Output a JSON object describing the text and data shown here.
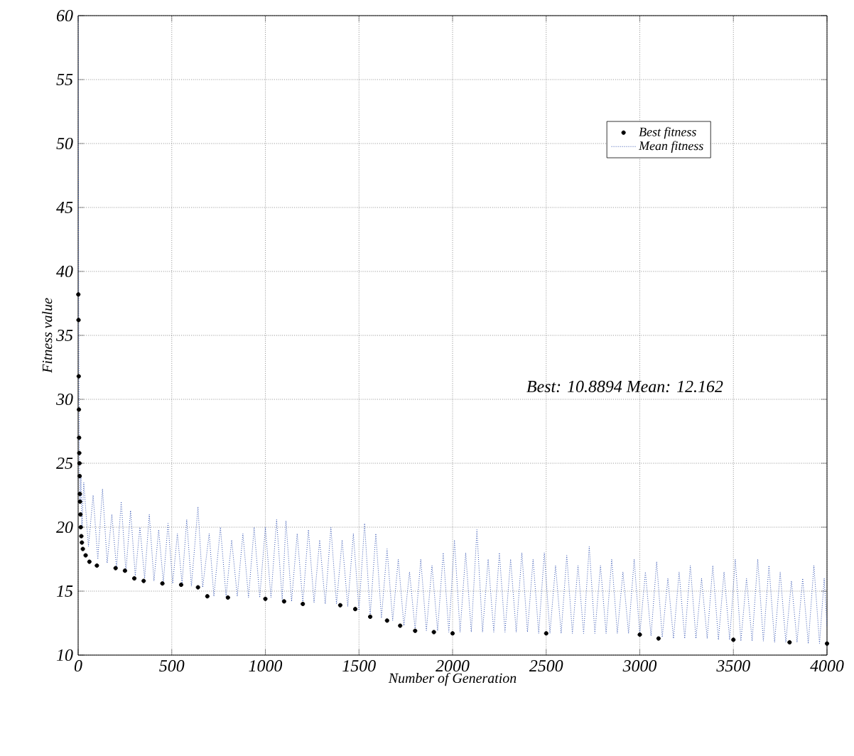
{
  "chart_data": {
    "type": "line",
    "xlabel": "Number of Generation",
    "ylabel": "Fitness value",
    "xlim": [
      0,
      4000
    ],
    "ylim": [
      10,
      60
    ],
    "xticks": [
      0,
      500,
      1000,
      1500,
      2000,
      2500,
      3000,
      3500,
      4000
    ],
    "yticks": [
      10,
      15,
      20,
      25,
      30,
      35,
      40,
      45,
      50,
      55,
      60
    ],
    "grid": true,
    "legend": "top right",
    "annotations": [
      "Best: 10.8894 Mean: 12.162"
    ],
    "series": [
      {
        "name": "Best fitness",
        "type": "scatter",
        "marker": "circle",
        "color": "#000000",
        "x": [
          1,
          2,
          3,
          4,
          5,
          6,
          7,
          8,
          9,
          10,
          12,
          14,
          17,
          20,
          25,
          40,
          60,
          100,
          200,
          250,
          300,
          350,
          450,
          550,
          640,
          690,
          800,
          1000,
          1100,
          1200,
          1400,
          1480,
          1560,
          1650,
          1720,
          1800,
          1900,
          2000,
          2500,
          3000,
          3100,
          3500,
          3800,
          4000
        ],
        "values": [
          38.2,
          36.2,
          31.8,
          29.2,
          27.0,
          25.8,
          25.0,
          24.0,
          22.6,
          22.0,
          21.0,
          20.0,
          19.3,
          18.8,
          18.3,
          17.8,
          17.3,
          17.0,
          16.8,
          16.6,
          16.0,
          15.8,
          15.6,
          15.5,
          15.3,
          14.6,
          14.5,
          14.4,
          14.2,
          14.0,
          13.9,
          13.6,
          13.0,
          12.7,
          12.3,
          11.9,
          11.8,
          11.7,
          11.7,
          11.6,
          11.3,
          11.2,
          11.0,
          10.9
        ]
      },
      {
        "name": "Mean fitness",
        "marker": "none",
        "line_style": "dotted",
        "color": "#3050b0",
        "x": [
          0,
          2,
          4,
          6,
          8,
          10,
          15,
          20,
          30,
          55,
          80,
          105,
          130,
          155,
          180,
          205,
          230,
          255,
          280,
          305,
          330,
          355,
          380,
          405,
          430,
          455,
          480,
          505,
          530,
          555,
          580,
          605,
          640,
          665,
          700,
          725,
          760,
          790,
          820,
          850,
          880,
          910,
          940,
          970,
          1000,
          1030,
          1060,
          1090,
          1110,
          1140,
          1170,
          1200,
          1230,
          1260,
          1290,
          1320,
          1350,
          1380,
          1410,
          1440,
          1470,
          1500,
          1530,
          1560,
          1590,
          1620,
          1650,
          1680,
          1710,
          1740,
          1770,
          1800,
          1830,
          1860,
          1890,
          1920,
          1950,
          1980,
          2010,
          2040,
          2070,
          2100,
          2130,
          2160,
          2190,
          2220,
          2250,
          2280,
          2310,
          2340,
          2370,
          2400,
          2430,
          2460,
          2490,
          2520,
          2550,
          2580,
          2610,
          2640,
          2670,
          2700,
          2730,
          2760,
          2790,
          2820,
          2850,
          2880,
          2910,
          2940,
          2970,
          3000,
          3030,
          3060,
          3090,
          3120,
          3150,
          3180,
          3210,
          3240,
          3270,
          3300,
          3330,
          3360,
          3390,
          3420,
          3450,
          3480,
          3510,
          3540,
          3570,
          3600,
          3630,
          3660,
          3690,
          3720,
          3750,
          3780,
          3810,
          3840,
          3870,
          3900,
          3930,
          3960,
          3985,
          4000
        ],
        "values": [
          60,
          45,
          32,
          26,
          23,
          22,
          24,
          20,
          23.5,
          18.5,
          22.5,
          17.5,
          23,
          17.2,
          21,
          16.8,
          22,
          16.5,
          21.3,
          16.2,
          20,
          16,
          21,
          15.8,
          19.8,
          15.7,
          20.3,
          15.6,
          19.5,
          15.6,
          20.6,
          15.4,
          21.6,
          15.3,
          19.5,
          14.6,
          20,
          14.6,
          19,
          14.6,
          19.5,
          14.5,
          20,
          14.5,
          20,
          14.5,
          20.6,
          14.3,
          20.5,
          14.2,
          19.5,
          14.1,
          19.8,
          14.1,
          19,
          14,
          20,
          14,
          19,
          13.8,
          19.5,
          13.5,
          20.3,
          13.1,
          19.5,
          12.9,
          18.3,
          12.7,
          17.5,
          12.3,
          16.5,
          12,
          17.5,
          11.9,
          17,
          11.9,
          18,
          11.8,
          19,
          11.8,
          18,
          11.8,
          19.8,
          11.8,
          17.5,
          11.8,
          18,
          11.8,
          17.5,
          11.8,
          18,
          11.8,
          17.5,
          11.7,
          18,
          11.7,
          17,
          11.7,
          17.8,
          11.7,
          17,
          11.7,
          18.5,
          11.7,
          17,
          11.7,
          17.5,
          11.7,
          16.5,
          11.7,
          17.5,
          11.6,
          16.5,
          11.5,
          17.3,
          11.4,
          16,
          11.3,
          16.5,
          11.3,
          17,
          11.3,
          16,
          11.3,
          17,
          11.2,
          16.5,
          11.2,
          17.5,
          11.1,
          16,
          11.1,
          17.5,
          11.1,
          17,
          11.0,
          16.5,
          11.0,
          15.8,
          11,
          16,
          10.9,
          17,
          10.9,
          16,
          12.2
        ]
      }
    ]
  }
}
